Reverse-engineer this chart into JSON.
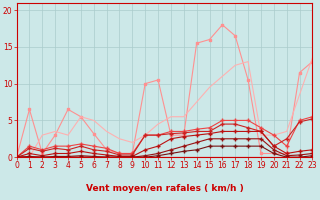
{
  "background_color": "#cce8e8",
  "grid_color": "#aacccc",
  "xlabel": "Vent moyen/en rafales ( km/h )",
  "xlim": [
    0,
    23
  ],
  "ylim": [
    0,
    21
  ],
  "yticks": [
    0,
    5,
    10,
    15,
    20
  ],
  "xticks": [
    0,
    1,
    2,
    3,
    4,
    5,
    6,
    7,
    8,
    9,
    10,
    11,
    12,
    13,
    14,
    15,
    16,
    17,
    18,
    19,
    20,
    21,
    22,
    23
  ],
  "series": [
    {
      "x": [
        0,
        1,
        2,
        3,
        4,
        5,
        6,
        7,
        8,
        9,
        10,
        11,
        12,
        13,
        14,
        15,
        16,
        17,
        18,
        19,
        20,
        21,
        22,
        23
      ],
      "y": [
        0.0,
        6.5,
        0.5,
        3.0,
        6.5,
        5.5,
        3.2,
        1.0,
        0.5,
        0.5,
        10.0,
        10.5,
        3.0,
        3.0,
        15.5,
        16.0,
        18.0,
        16.5,
        10.5,
        0.5,
        0.5,
        0.5,
        11.5,
        13.0
      ],
      "color": "#ff9090",
      "linewidth": 0.8,
      "marker": "s",
      "markersize": 2
    },
    {
      "x": [
        0,
        1,
        2,
        3,
        4,
        5,
        6,
        7,
        8,
        9,
        10,
        11,
        12,
        13,
        14,
        15,
        16,
        17,
        18,
        19,
        20,
        21,
        22,
        23
      ],
      "y": [
        0.0,
        0.0,
        3.0,
        3.5,
        3.0,
        5.5,
        5.0,
        3.5,
        2.5,
        2.0,
        3.0,
        4.5,
        5.5,
        5.5,
        7.5,
        9.5,
        11.0,
        12.5,
        13.0,
        3.0,
        3.0,
        3.5,
        8.5,
        13.5
      ],
      "color": "#ffb0b0",
      "linewidth": 0.8,
      "marker": null,
      "markersize": 0
    },
    {
      "x": [
        0,
        1,
        2,
        3,
        4,
        5,
        6,
        7,
        8,
        9,
        10,
        11,
        12,
        13,
        14,
        15,
        16,
        17,
        18,
        19,
        20,
        21,
        22,
        23
      ],
      "y": [
        0.0,
        1.5,
        1.0,
        1.5,
        1.5,
        1.8,
        1.5,
        1.2,
        0.5,
        0.5,
        3.0,
        3.0,
        3.5,
        3.5,
        3.8,
        4.0,
        5.0,
        5.0,
        5.0,
        4.0,
        3.0,
        1.5,
        5.0,
        5.5
      ],
      "color": "#ee4444",
      "linewidth": 0.8,
      "marker": "+",
      "markersize": 3
    },
    {
      "x": [
        0,
        1,
        2,
        3,
        4,
        5,
        6,
        7,
        8,
        9,
        10,
        11,
        12,
        13,
        14,
        15,
        16,
        17,
        18,
        19,
        20,
        21,
        22,
        23
      ],
      "y": [
        0.0,
        1.2,
        0.8,
        1.2,
        1.0,
        1.5,
        1.0,
        0.8,
        0.3,
        0.3,
        3.0,
        3.0,
        3.2,
        3.3,
        3.5,
        3.5,
        4.5,
        4.5,
        4.0,
        3.5,
        1.5,
        2.5,
        4.8,
        5.2
      ],
      "color": "#cc2222",
      "linewidth": 0.8,
      "marker": "+",
      "markersize": 3
    },
    {
      "x": [
        0,
        1,
        2,
        3,
        4,
        5,
        6,
        7,
        8,
        9,
        10,
        11,
        12,
        13,
        14,
        15,
        16,
        17,
        18,
        19,
        20,
        21,
        22,
        23
      ],
      "y": [
        0.0,
        0.5,
        0.2,
        0.5,
        0.5,
        0.8,
        0.5,
        0.3,
        0.1,
        0.1,
        1.0,
        1.5,
        2.5,
        2.8,
        3.0,
        3.2,
        3.5,
        3.5,
        3.5,
        3.5,
        1.5,
        0.5,
        0.8,
        1.0
      ],
      "color": "#bb1111",
      "linewidth": 0.8,
      "marker": "+",
      "markersize": 3
    },
    {
      "x": [
        0,
        1,
        2,
        3,
        4,
        5,
        6,
        7,
        8,
        9,
        10,
        11,
        12,
        13,
        14,
        15,
        16,
        17,
        18,
        19,
        20,
        21,
        22,
        23
      ],
      "y": [
        0.0,
        0.1,
        0.0,
        0.1,
        0.1,
        0.2,
        0.1,
        0.0,
        0.0,
        0.0,
        0.2,
        0.5,
        1.0,
        1.5,
        2.0,
        2.5,
        2.5,
        2.5,
        2.5,
        2.5,
        1.0,
        0.2,
        0.3,
        0.5
      ],
      "color": "#991111",
      "linewidth": 0.8,
      "marker": "+",
      "markersize": 3
    },
    {
      "x": [
        0,
        1,
        2,
        3,
        4,
        5,
        6,
        7,
        8,
        9,
        10,
        11,
        12,
        13,
        14,
        15,
        16,
        17,
        18,
        19,
        20,
        21,
        22,
        23
      ],
      "y": [
        0.0,
        0.0,
        0.0,
        0.0,
        0.0,
        0.0,
        0.0,
        0.0,
        0.0,
        0.0,
        0.0,
        0.2,
        0.5,
        0.8,
        1.0,
        1.5,
        1.5,
        1.5,
        1.5,
        1.5,
        0.5,
        0.0,
        0.0,
        0.2
      ],
      "color": "#771111",
      "linewidth": 0.8,
      "marker": "+",
      "markersize": 3
    }
  ],
  "xlabel_fontsize": 6.5,
  "tick_fontsize": 5.5,
  "tick_color": "#cc0000",
  "axis_color": "#cc0000",
  "arrow_color": "#cc0000"
}
